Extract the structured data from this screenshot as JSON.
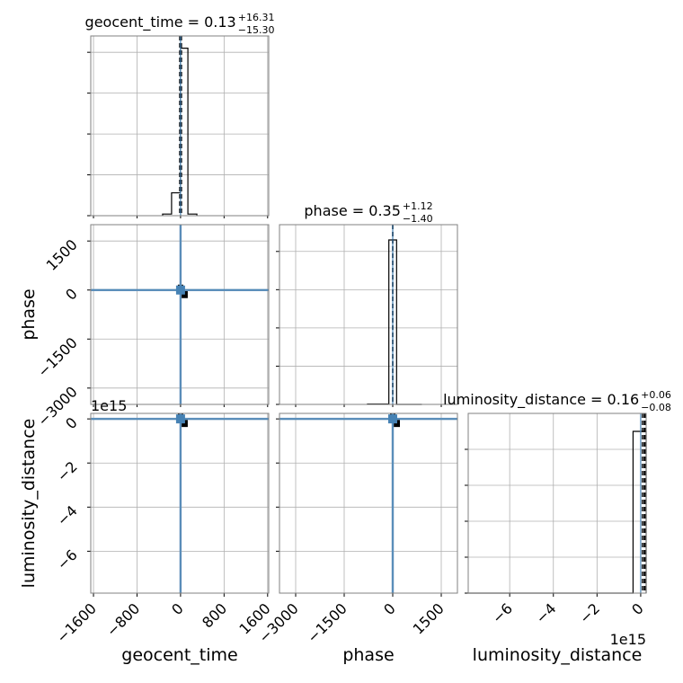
{
  "chart_data": {
    "type": "corner",
    "parameters": [
      "geocent_time",
      "phase",
      "luminosity_distance"
    ],
    "axis_labels": {
      "geocent_time": "geocent_time",
      "phase": "phase",
      "luminosity_distance": "luminosity_distance"
    },
    "titles": [
      {
        "param": "geocent_time",
        "label": "geocent_time = 0.13",
        "plus": "+16.31",
        "minus": "−15.30"
      },
      {
        "param": "phase",
        "label": "phase = 0.35",
        "plus": "+1.12",
        "minus": "−1.40"
      },
      {
        "param": "luminosity_distance",
        "label": "luminosity_distance = 0.16",
        "plus": "+0.06",
        "minus": "−0.08"
      }
    ],
    "ranges": {
      "geocent_time": [
        -1650,
        1620
      ],
      "phase": [
        -3500,
        2000
      ],
      "luminosity_distance": [
        -7.9,
        0.25
      ]
    },
    "offset_text": "1e15",
    "ticks": {
      "geocent_time": {
        "values": [
          -1600,
          -800,
          0,
          800,
          1600
        ],
        "labels": [
          "−1600",
          "−800",
          "0",
          "800",
          "1600"
        ]
      },
      "phase": {
        "values": [
          -3000,
          -1500,
          0,
          1500
        ],
        "labels": [
          "−3000",
          "−1500",
          "0",
          "1500"
        ]
      },
      "luminosity_distance": {
        "values": [
          -6,
          -4,
          -2,
          0
        ],
        "labels": [
          "−6",
          "−4",
          "−2",
          "0"
        ]
      }
    },
    "histograms": {
      "geocent_time": {
        "edges": [
          -330,
          -165,
          0,
          135,
          300
        ],
        "counts": [
          0.04,
          0.56,
          4.1,
          0.04
        ],
        "ymax": 4.4,
        "ticks": [
          0,
          1,
          2,
          3,
          4
        ],
        "lines": [
          0.13,
          -15.17,
          16.44
        ]
      },
      "phase": {
        "edges": [
          -780,
          -120,
          120,
          900
        ],
        "counts": [
          0.01,
          4.3,
          0.0
        ],
        "ymax": 4.7,
        "ticks": [
          0,
          1,
          2,
          3,
          4
        ],
        "lines": [
          0.35,
          -1.05,
          1.47
        ]
      },
      "luminosity_distance": {
        "edges": [
          -7.9,
          -0.35,
          0.25
        ],
        "counts": [
          0.0,
          4.5
        ],
        "ymax": 5.0,
        "ticks": [
          0,
          1,
          2,
          3,
          4
        ],
        "lines": [
          0.16,
          0.08,
          0.22
        ]
      }
    },
    "truths": {
      "geocent_time": 0,
      "phase": 0,
      "luminosity_distance": 0
    },
    "truth_color": "#4682b4",
    "hist_color": "#000000",
    "grid": true
  }
}
